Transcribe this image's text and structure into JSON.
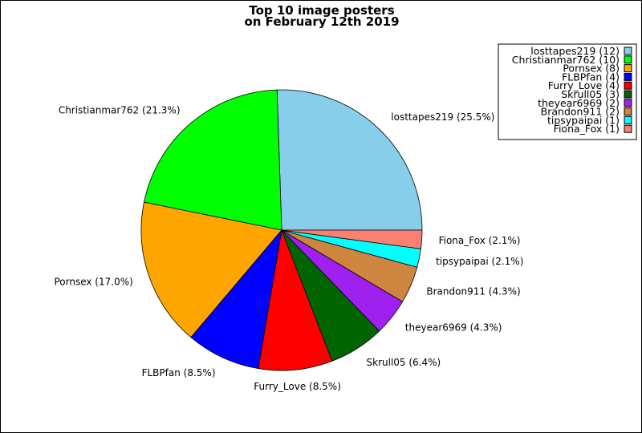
{
  "chart_data": {
    "type": "pie",
    "title_lines": [
      "Top 10 image posters",
      "on February 12th 2019"
    ],
    "slices": [
      {
        "name": "losttapes219",
        "value": 12,
        "percent_label": "losttapes219 (25.5%)",
        "legend_label": "losttapes219 (12)",
        "color": "#87CEEB"
      },
      {
        "name": "Christianmar762",
        "value": 10,
        "percent_label": "Christianmar762 (21.3%)",
        "legend_label": "Christianmar762 (10)",
        "color": "#00FF00"
      },
      {
        "name": "Pornsex",
        "value": 8,
        "percent_label": "Pornsex (17.0%)",
        "legend_label": "Pornsex (8)",
        "color": "#FFA500"
      },
      {
        "name": "FLBPfan",
        "value": 4,
        "percent_label": "FLBPfan (8.5%)",
        "legend_label": "FLBPfan (4)",
        "color": "#0000FF"
      },
      {
        "name": "Furry_Love",
        "value": 4,
        "percent_label": "Furry_Love (8.5%)",
        "legend_label": "Furry_Love (4)",
        "color": "#FF0000"
      },
      {
        "name": "Skrull05",
        "value": 3,
        "percent_label": "Skrull05 (6.4%)",
        "legend_label": "Skrull05 (3)",
        "color": "#006400"
      },
      {
        "name": "theyear6969",
        "value": 2,
        "percent_label": "theyear6969 (4.3%)",
        "legend_label": "theyear6969 (2)",
        "color": "#A020F0"
      },
      {
        "name": "Brandon911",
        "value": 2,
        "percent_label": "Brandon911 (4.3%)",
        "legend_label": "Brandon911 (2)",
        "color": "#CD853F"
      },
      {
        "name": "tipsypaipai",
        "value": 1,
        "percent_label": "tipsypaipai (2.1%)",
        "legend_label": "tipsypaipai (1)",
        "color": "#00FFFF"
      },
      {
        "name": "Fiona_Fox",
        "value": 1,
        "percent_label": "Fiona_Fox (2.1%)",
        "legend_label": "Fiona_Fox (1)",
        "color": "#FA8072"
      }
    ],
    "legend_position": "top-right"
  }
}
